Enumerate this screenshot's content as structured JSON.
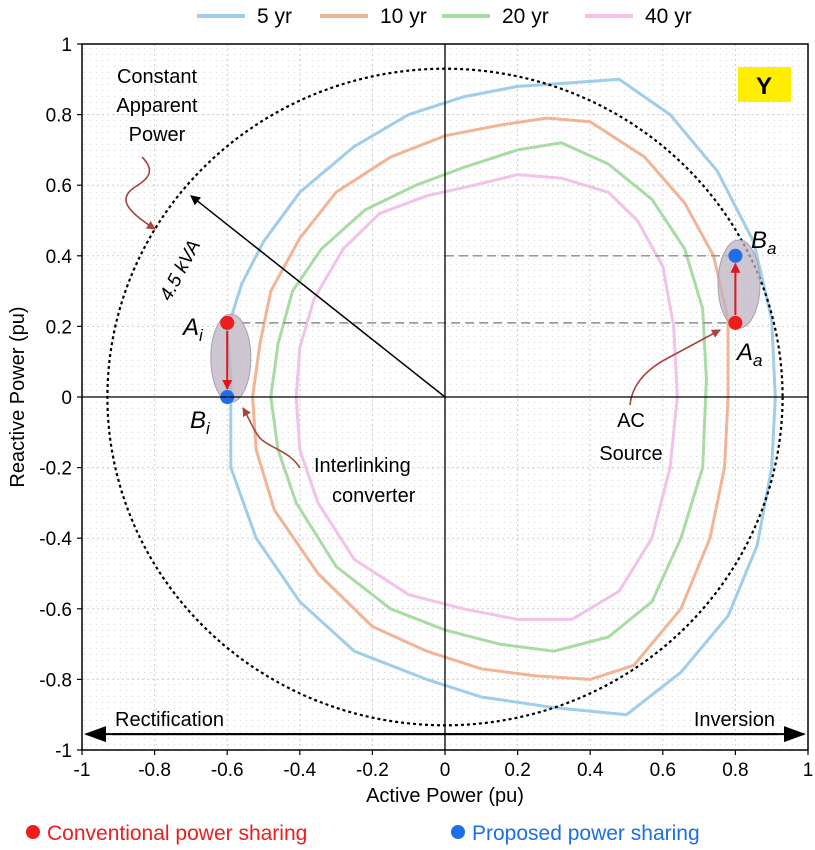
{
  "chart_data": {
    "type": "line",
    "xlabel": "Active Power (pu)",
    "ylabel": "Reactive Power (pu)",
    "xlim": [
      -1,
      1
    ],
    "ylim": [
      -1,
      1
    ],
    "xticks": [
      "-1",
      "-0.8",
      "-0.6",
      "-0.4",
      "-0.2",
      "0",
      "0.2",
      "0.4",
      "0.6",
      "0.8",
      "1"
    ],
    "yticks": [
      "1",
      "0.8",
      "0.6",
      "0.4",
      "0.2",
      "0",
      "-0.2",
      "-0.4",
      "-0.6",
      "-0.8",
      "-1"
    ],
    "grid": true,
    "legend_position": "top",
    "panel_label": "Y",
    "series": [
      {
        "name": "5 yr",
        "color": "#9fcdea",
        "points": [
          [
            -0.59,
            0.06
          ],
          [
            -0.6,
            0.19
          ],
          [
            -0.56,
            0.32
          ],
          [
            -0.5,
            0.44
          ],
          [
            -0.4,
            0.58
          ],
          [
            -0.25,
            0.71
          ],
          [
            -0.1,
            0.8
          ],
          [
            0.05,
            0.85
          ],
          [
            0.2,
            0.88
          ],
          [
            0.35,
            0.89
          ],
          [
            0.48,
            0.9
          ],
          [
            0.62,
            0.8
          ],
          [
            0.75,
            0.64
          ],
          [
            0.85,
            0.44
          ],
          [
            0.9,
            0.22
          ],
          [
            0.91,
            0.0
          ],
          [
            0.9,
            -0.2
          ],
          [
            0.86,
            -0.42
          ],
          [
            0.78,
            -0.62
          ],
          [
            0.65,
            -0.78
          ],
          [
            0.5,
            -0.9
          ],
          [
            0.3,
            -0.88
          ],
          [
            0.1,
            -0.85
          ],
          [
            -0.05,
            -0.8
          ],
          [
            -0.25,
            -0.72
          ],
          [
            -0.4,
            -0.58
          ],
          [
            -0.52,
            -0.4
          ],
          [
            -0.59,
            -0.2
          ],
          [
            -0.59,
            0.06
          ]
        ]
      },
      {
        "name": "10 yr",
        "color": "#f1b596",
        "points": [
          [
            -0.53,
            0.0
          ],
          [
            -0.51,
            0.15
          ],
          [
            -0.48,
            0.3
          ],
          [
            -0.4,
            0.45
          ],
          [
            -0.3,
            0.58
          ],
          [
            -0.15,
            0.68
          ],
          [
            0.0,
            0.74
          ],
          [
            0.15,
            0.77
          ],
          [
            0.28,
            0.79
          ],
          [
            0.4,
            0.78
          ],
          [
            0.55,
            0.68
          ],
          [
            0.66,
            0.55
          ],
          [
            0.74,
            0.4
          ],
          [
            0.78,
            0.22
          ],
          [
            0.78,
            0.0
          ],
          [
            0.77,
            -0.2
          ],
          [
            0.73,
            -0.4
          ],
          [
            0.65,
            -0.6
          ],
          [
            0.52,
            -0.76
          ],
          [
            0.4,
            -0.8
          ],
          [
            0.25,
            -0.79
          ],
          [
            0.1,
            -0.77
          ],
          [
            -0.05,
            -0.72
          ],
          [
            -0.2,
            -0.65
          ],
          [
            -0.35,
            -0.5
          ],
          [
            -0.47,
            -0.32
          ],
          [
            -0.52,
            -0.15
          ],
          [
            -0.53,
            0.0
          ]
        ]
      },
      {
        "name": "20 yr",
        "color": "#a9dba4",
        "points": [
          [
            -0.48,
            0.0
          ],
          [
            -0.46,
            0.15
          ],
          [
            -0.42,
            0.3
          ],
          [
            -0.34,
            0.42
          ],
          [
            -0.22,
            0.53
          ],
          [
            -0.08,
            0.6
          ],
          [
            0.05,
            0.65
          ],
          [
            0.2,
            0.7
          ],
          [
            0.32,
            0.72
          ],
          [
            0.45,
            0.66
          ],
          [
            0.57,
            0.56
          ],
          [
            0.66,
            0.42
          ],
          [
            0.71,
            0.25
          ],
          [
            0.72,
            0.05
          ],
          [
            0.71,
            -0.2
          ],
          [
            0.65,
            -0.4
          ],
          [
            0.57,
            -0.58
          ],
          [
            0.45,
            -0.68
          ],
          [
            0.3,
            -0.72
          ],
          [
            0.15,
            -0.7
          ],
          [
            0.0,
            -0.66
          ],
          [
            -0.15,
            -0.6
          ],
          [
            -0.3,
            -0.48
          ],
          [
            -0.41,
            -0.3
          ],
          [
            -0.46,
            -0.15
          ],
          [
            -0.48,
            0.0
          ]
        ]
      },
      {
        "name": "40 yr",
        "color": "#f2c2ea",
        "points": [
          [
            -0.41,
            0.0
          ],
          [
            -0.4,
            0.14
          ],
          [
            -0.36,
            0.28
          ],
          [
            -0.28,
            0.42
          ],
          [
            -0.18,
            0.52
          ],
          [
            -0.05,
            0.57
          ],
          [
            0.08,
            0.6
          ],
          [
            0.2,
            0.63
          ],
          [
            0.32,
            0.62
          ],
          [
            0.45,
            0.58
          ],
          [
            0.53,
            0.5
          ],
          [
            0.6,
            0.37
          ],
          [
            0.63,
            0.2
          ],
          [
            0.64,
            0.0
          ],
          [
            0.62,
            -0.2
          ],
          [
            0.57,
            -0.4
          ],
          [
            0.48,
            -0.55
          ],
          [
            0.35,
            -0.63
          ],
          [
            0.2,
            -0.63
          ],
          [
            0.05,
            -0.6
          ],
          [
            -0.1,
            -0.56
          ],
          [
            -0.25,
            -0.46
          ],
          [
            -0.35,
            -0.3
          ],
          [
            -0.4,
            -0.15
          ],
          [
            -0.41,
            0.0
          ]
        ]
      }
    ],
    "circle": {
      "radius": 0.93,
      "label": "4.5 kVA",
      "caption": [
        "Constant",
        "Apparent",
        "Power"
      ]
    },
    "markers": [
      {
        "name": "A",
        "sub": "i",
        "x": -0.6,
        "y": 0.21,
        "kind": "conventional"
      },
      {
        "name": "B",
        "sub": "i",
        "x": -0.6,
        "y": 0.0,
        "kind": "proposed"
      },
      {
        "name": "A",
        "sub": "a",
        "x": 0.8,
        "y": 0.21,
        "kind": "conventional"
      },
      {
        "name": "B",
        "sub": "a",
        "x": 0.8,
        "y": 0.4,
        "kind": "proposed"
      }
    ],
    "annotations": {
      "interlinking": [
        "Interlinking",
        "converter"
      ],
      "ac_source": [
        "AC",
        "Source"
      ],
      "rectification": "Rectification",
      "inversion": "Inversion"
    },
    "bottom_legend": [
      {
        "label": "Conventional power sharing",
        "color": "#ee1c1c"
      },
      {
        "label": "Proposed power sharing",
        "color": "#1c6fe8"
      }
    ]
  }
}
